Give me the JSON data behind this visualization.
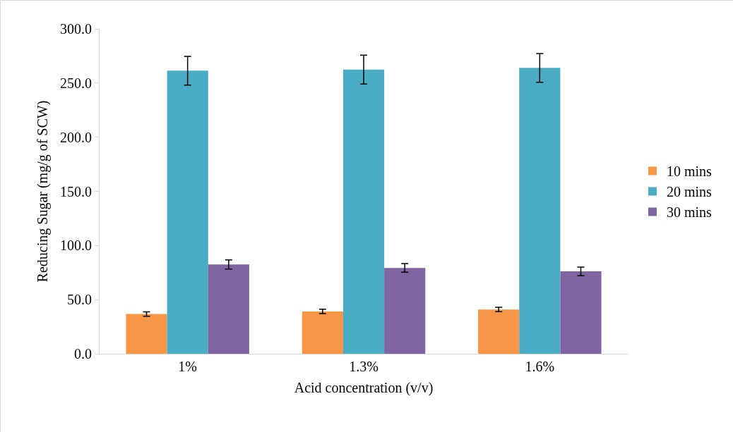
{
  "chart_data": {
    "type": "bar",
    "xlabel": "Acid concentration (v/v)",
    "ylabel": "Reducing Sugar (mg/g of SCW)",
    "categories": [
      "1%",
      "1.3%",
      "1.6%"
    ],
    "series": [
      {
        "name": "10 mins",
        "color": "#f79646",
        "values": [
          36.7,
          39.1,
          40.9
        ],
        "errors": [
          2,
          2,
          2
        ]
      },
      {
        "name": "20 mins",
        "color": "#4bacc6",
        "values": [
          261.4,
          262.4,
          264.0
        ],
        "errors": [
          13.3,
          13.3,
          13.3
        ]
      },
      {
        "name": "30 mins",
        "color": "#8064a2",
        "values": [
          82.5,
          79.3,
          76.1
        ],
        "errors": [
          4.2,
          4,
          4
        ]
      }
    ],
    "ylim": [
      0,
      300
    ],
    "yticks": [
      {
        "value": 0,
        "label": "0.0"
      },
      {
        "value": 50,
        "label": "50.0"
      },
      {
        "value": 100,
        "label": "100.0"
      },
      {
        "value": 150,
        "label": "150.0"
      },
      {
        "value": 200,
        "label": "200.0"
      },
      {
        "value": 250,
        "label": "250.0"
      },
      {
        "value": 300,
        "label": "300.0"
      }
    ],
    "grid": false,
    "legend": "right"
  }
}
